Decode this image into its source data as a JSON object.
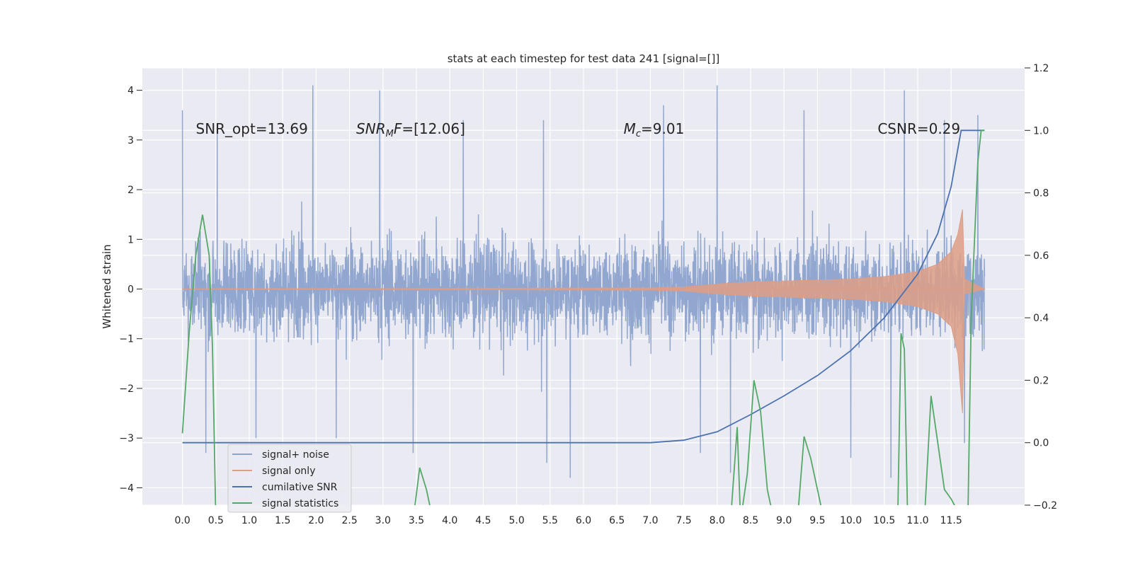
{
  "chart_data": {
    "type": "line",
    "title": "stats at each timestep for test data 241 [signal=[]]",
    "xlabel": "",
    "ylabel": "Whitened strain",
    "y2label": "",
    "xlim": [
      -0.6,
      12.6
    ],
    "ylim": [
      -4.35,
      4.45
    ],
    "y2lim": [
      -0.2,
      1.2
    ],
    "x_ticks": [
      "0.0",
      "0.5",
      "1.0",
      "1.5",
      "2.0",
      "2.5",
      "3.0",
      "3.5",
      "4.0",
      "4.5",
      "5.0",
      "5.5",
      "6.0",
      "6.5",
      "7.0",
      "7.5",
      "8.0",
      "8.5",
      "9.0",
      "9.5",
      "10.0",
      "10.5",
      "11.0",
      "11.5"
    ],
    "x_tick_values": [
      0,
      0.5,
      1,
      1.5,
      2,
      2.5,
      3,
      3.5,
      4,
      4.5,
      5,
      5.5,
      6,
      6.5,
      7,
      7.5,
      8,
      8.5,
      9,
      9.5,
      10,
      10.5,
      11,
      11.5
    ],
    "y_ticks": [
      "4",
      "3",
      "2",
      "1",
      "0",
      "−1",
      "−2",
      "−3",
      "−4"
    ],
    "y_tick_values": [
      4,
      3,
      2,
      1,
      0,
      -1,
      -2,
      -3,
      -4
    ],
    "y2_ticks": [
      "1.2",
      "1.0",
      "0.8",
      "0.6",
      "0.4",
      "0.2",
      "0.0",
      "−0.2"
    ],
    "y2_tick_values": [
      1.2,
      1.0,
      0.8,
      0.6,
      0.4,
      0.2,
      0.0,
      -0.2
    ],
    "grid": true,
    "legend_position": "bottom-left",
    "annotations": [
      {
        "label": "SNR_opt=13.69",
        "x": 0.2,
        "y": 3.3
      },
      {
        "label": "SNR",
        "sub": "M",
        "tail": "F=[12.06]",
        "x": 2.6,
        "y": 3.3
      },
      {
        "label": "M",
        "sub": "c",
        "tail": "=9.01",
        "x": 6.6,
        "y": 3.3
      },
      {
        "label": "CSNR=0.29",
        "x": 10.4,
        "y": 3.3
      }
    ],
    "series": [
      {
        "name": "signal+ noise",
        "axis": "left",
        "color": "#8da3cc",
        "x_range": [
          0,
          12.0
        ],
        "envelope": {
          "typical_amplitude": 1.95,
          "peak_max": 4.1,
          "peak_min": -3.9
        },
        "peaks": [
          {
            "x": 0.0,
            "y": 3.6
          },
          {
            "x": 0.35,
            "y": -3.3
          },
          {
            "x": 0.52,
            "y": 3.3
          },
          {
            "x": 1.1,
            "y": -3.0
          },
          {
            "x": 1.95,
            "y": 4.1
          },
          {
            "x": 2.3,
            "y": -3.0
          },
          {
            "x": 2.95,
            "y": 4.0
          },
          {
            "x": 3.45,
            "y": -3.3
          },
          {
            "x": 4.2,
            "y": 3.4
          },
          {
            "x": 5.45,
            "y": -3.5
          },
          {
            "x": 5.4,
            "y": 3.4
          },
          {
            "x": 5.8,
            "y": -3.8
          },
          {
            "x": 7.2,
            "y": 3.7
          },
          {
            "x": 7.75,
            "y": -3.3
          },
          {
            "x": 8.0,
            "y": 4.1
          },
          {
            "x": 8.2,
            "y": -3.7
          },
          {
            "x": 9.3,
            "y": 3.6
          },
          {
            "x": 10.0,
            "y": -3.4
          },
          {
            "x": 10.8,
            "y": 4.0
          },
          {
            "x": 10.6,
            "y": -3.8
          },
          {
            "x": 11.4,
            "y": 3.4
          },
          {
            "x": 11.7,
            "y": -3.1
          },
          {
            "x": 11.9,
            "y": 3.5
          }
        ]
      },
      {
        "name": "signal only",
        "axis": "left",
        "color": "#dd9d86",
        "points": [
          [
            0,
            0.0
          ],
          [
            7.0,
            0.02
          ],
          [
            7.6,
            0.05
          ],
          [
            8.0,
            0.1
          ],
          [
            8.5,
            0.14
          ],
          [
            9.0,
            0.16
          ],
          [
            9.5,
            0.18
          ],
          [
            10.0,
            0.2
          ],
          [
            10.5,
            0.25
          ],
          [
            11.0,
            0.35
          ],
          [
            11.3,
            0.5
          ],
          [
            11.5,
            0.75
          ],
          [
            11.6,
            1.1
          ],
          [
            11.67,
            1.6
          ],
          [
            11.7,
            0.2
          ],
          [
            12.0,
            0.0
          ]
        ],
        "negative_points": [
          [
            11.6,
            -1.3
          ],
          [
            11.67,
            -2.5
          ],
          [
            11.7,
            -0.1
          ]
        ]
      },
      {
        "name": "cumilative SNR",
        "axis": "right",
        "color": "#4c72b0",
        "points": [
          [
            0,
            0.0
          ],
          [
            6.5,
            0.0
          ],
          [
            7.0,
            0.0
          ],
          [
            7.5,
            0.008
          ],
          [
            8.0,
            0.035
          ],
          [
            8.5,
            0.09
          ],
          [
            9.0,
            0.15
          ],
          [
            9.5,
            0.215
          ],
          [
            10.0,
            0.295
          ],
          [
            10.5,
            0.4
          ],
          [
            11.0,
            0.54
          ],
          [
            11.3,
            0.67
          ],
          [
            11.5,
            0.82
          ],
          [
            11.65,
            1.0
          ],
          [
            12.0,
            1.0
          ]
        ]
      },
      {
        "name": "signal statistics",
        "axis": "right",
        "color": "#55a868",
        "points": [
          [
            0,
            0.03
          ],
          [
            0.1,
            0.35
          ],
          [
            0.2,
            0.6
          ],
          [
            0.3,
            0.73
          ],
          [
            0.4,
            0.6
          ],
          [
            0.45,
            0.3
          ],
          [
            0.5,
            -0.25
          ],
          [
            3.45,
            -0.25
          ],
          [
            3.55,
            -0.08
          ],
          [
            3.65,
            -0.15
          ],
          [
            3.75,
            -0.25
          ],
          [
            5.35,
            -0.25
          ],
          [
            5.4,
            -0.2
          ],
          [
            5.45,
            -0.25
          ],
          [
            8.2,
            -0.25
          ],
          [
            8.3,
            0.05
          ],
          [
            8.35,
            -0.25
          ],
          [
            8.45,
            -0.1
          ],
          [
            8.55,
            0.2
          ],
          [
            8.65,
            0.1
          ],
          [
            8.75,
            -0.15
          ],
          [
            8.8,
            -0.2
          ],
          [
            8.85,
            -0.25
          ],
          [
            9.2,
            -0.25
          ],
          [
            9.3,
            0.02
          ],
          [
            9.4,
            -0.05
          ],
          [
            9.5,
            -0.15
          ],
          [
            9.6,
            -0.25
          ],
          [
            10.7,
            -0.25
          ],
          [
            10.75,
            0.35
          ],
          [
            10.8,
            0.3
          ],
          [
            10.85,
            -0.25
          ],
          [
            11.1,
            -0.25
          ],
          [
            11.2,
            0.15
          ],
          [
            11.3,
            0.0
          ],
          [
            11.4,
            -0.15
          ],
          [
            11.5,
            -0.18
          ],
          [
            11.6,
            -0.22
          ],
          [
            11.75,
            -0.25
          ],
          [
            11.8,
            0.4
          ],
          [
            11.9,
            0.9
          ],
          [
            11.95,
            1.0
          ],
          [
            12.0,
            1.0
          ]
        ]
      }
    ]
  }
}
